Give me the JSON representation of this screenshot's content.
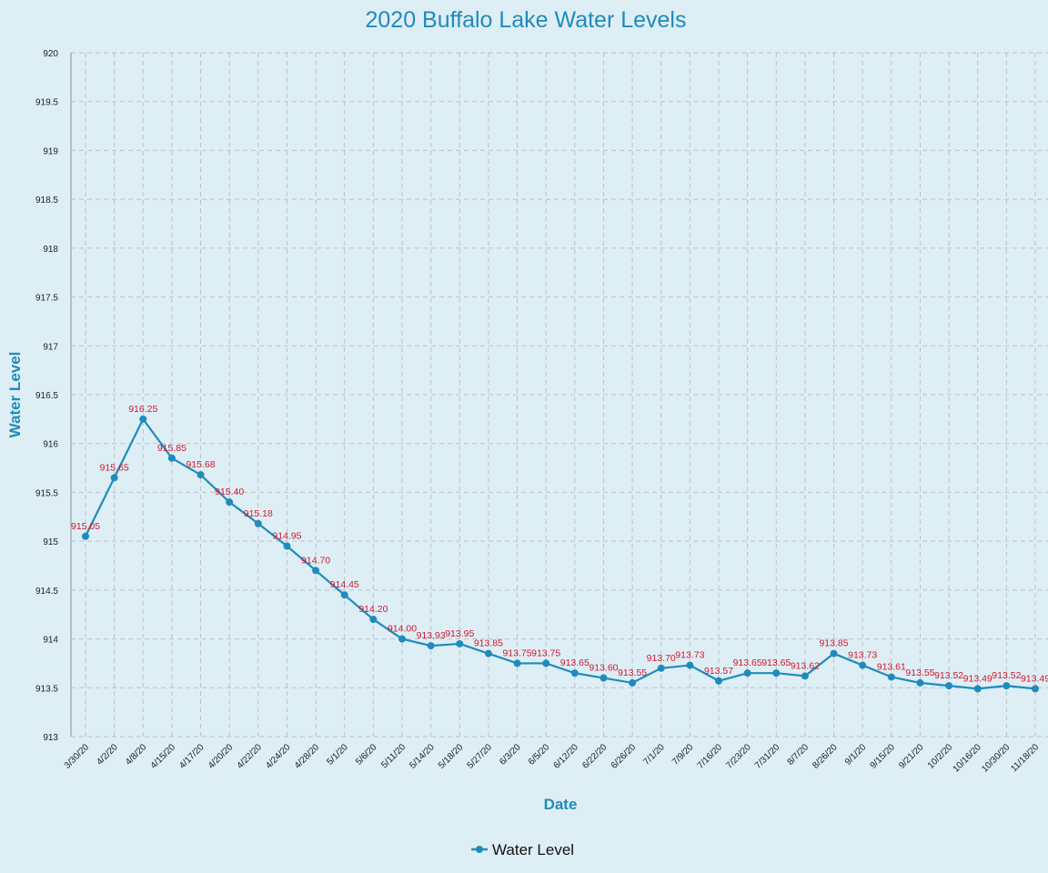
{
  "chart_data": {
    "type": "line",
    "title": "2020 Buffalo Lake Water Levels",
    "xlabel": "Date",
    "ylabel": "Water Level",
    "ylim": [
      913,
      920
    ],
    "yticks": [
      "913",
      "913.5",
      "914",
      "914.5",
      "915",
      "915.5",
      "916",
      "916.5",
      "917",
      "917.5",
      "918",
      "918.5",
      "919",
      "919.5",
      "920"
    ],
    "grid": true,
    "legend_position": "bottom",
    "categories": [
      "3/30/20",
      "4/2/20",
      "4/8/20",
      "4/15/20",
      "4/17/20",
      "4/20/20",
      "4/22/20",
      "4/24/20",
      "4/28/20",
      "5/1/20",
      "5/6/20",
      "5/11/20",
      "5/14/20",
      "5/18/20",
      "5/27/20",
      "6/3/20",
      "6/5/20",
      "6/12/20",
      "6/22/20",
      "6/26/20",
      "7/1/20",
      "7/9/20",
      "7/16/20",
      "7/23/20",
      "7/31/20",
      "8/7/20",
      "8/26/20",
      "9/1/20",
      "9/15/20",
      "9/21/20",
      "10/2/20",
      "10/16/20",
      "10/30/20",
      "11/18/20"
    ],
    "series": [
      {
        "name": "Water Level",
        "color": "#1f8bbd",
        "label_color": "#d0182e",
        "values": [
          915.05,
          915.65,
          916.25,
          915.85,
          915.68,
          915.4,
          915.18,
          914.95,
          914.7,
          914.45,
          914.2,
          914.0,
          913.93,
          913.95,
          913.85,
          913.75,
          913.75,
          913.65,
          913.6,
          913.55,
          913.7,
          913.73,
          913.57,
          913.65,
          913.65,
          913.62,
          913.85,
          913.73,
          913.61,
          913.55,
          913.52,
          913.49,
          913.52,
          913.49
        ],
        "labels": [
          "915.05",
          "915.65",
          "916.25",
          "915.85",
          "915.68",
          "915.40",
          "915.18",
          "914.95",
          "914.70",
          "914.45",
          "914.20",
          "914.00",
          "913.93",
          "913.95",
          "913.85",
          "913.75",
          "913.75",
          "913.65",
          "913.60",
          "913.55",
          "913.70",
          "913.73",
          "913.57",
          "913.65",
          "913.65",
          "913.62",
          "913.85",
          "913.73",
          "913.61",
          "913.55",
          "913.52",
          "913.49",
          "913.52",
          "913.49"
        ]
      }
    ]
  },
  "legend": {
    "label": "Water Level"
  }
}
